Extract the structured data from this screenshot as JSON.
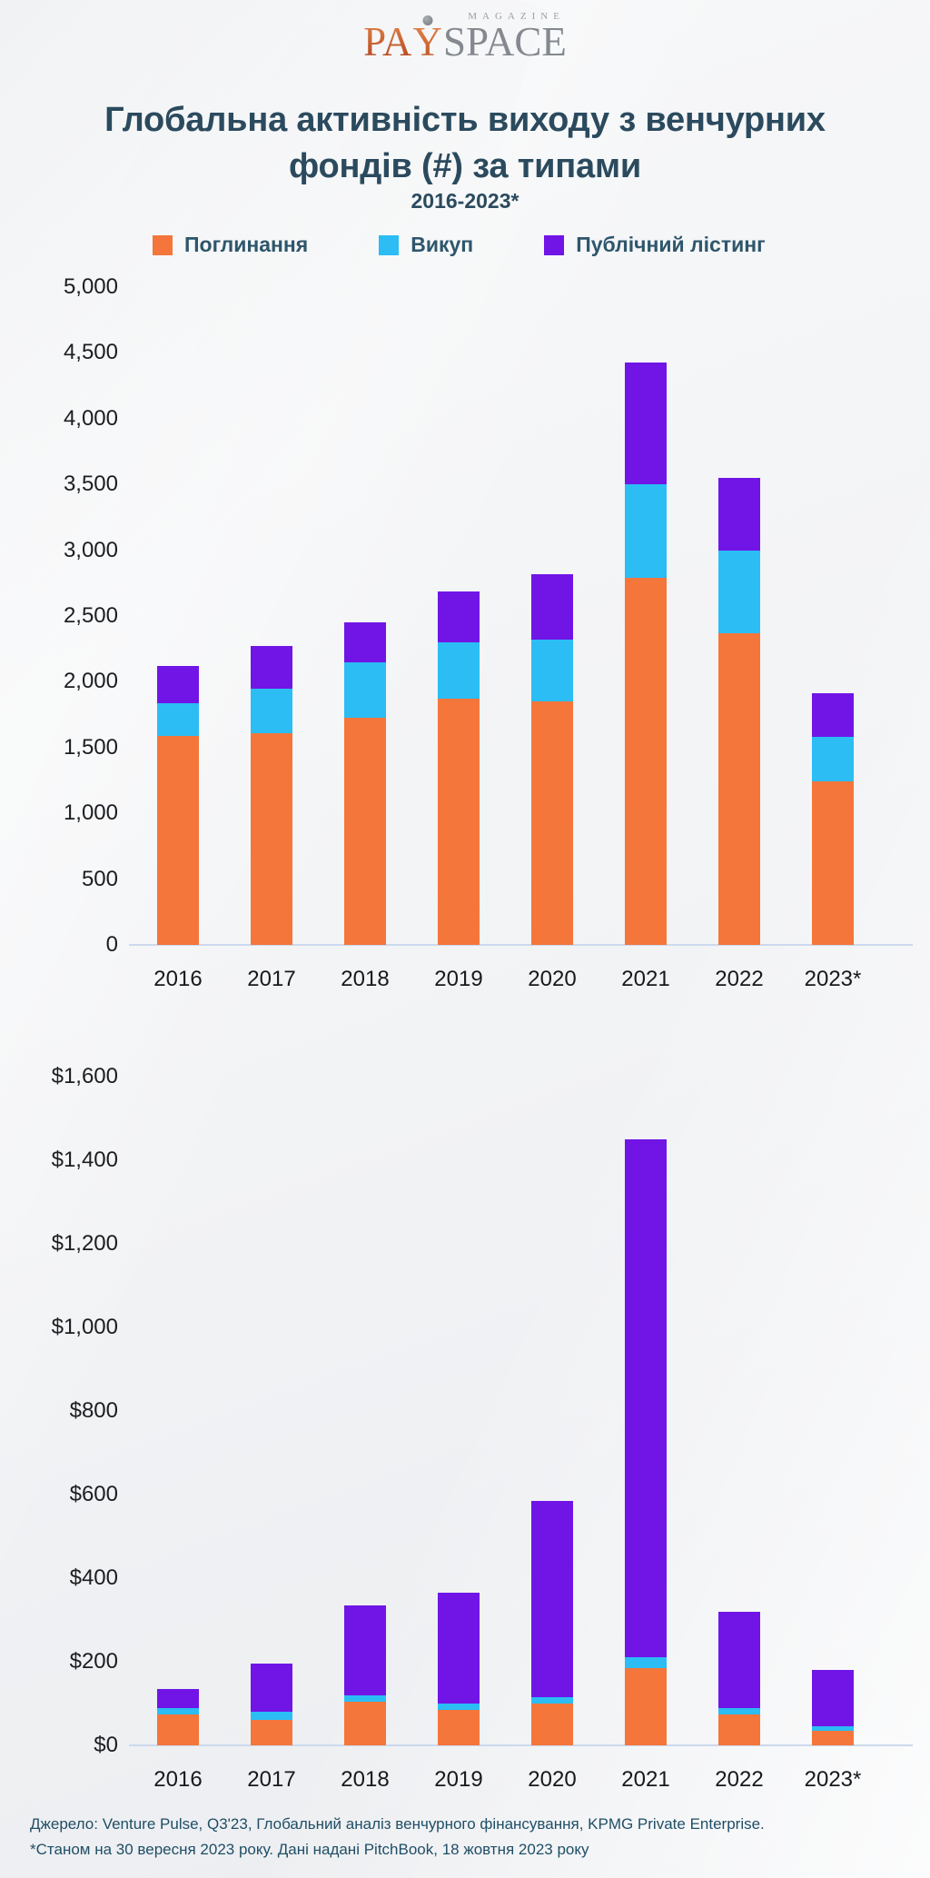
{
  "logo": {
    "magazine": "MAGAZINE",
    "pa": "PA",
    "y": "Y",
    "space": "SPACE"
  },
  "title": "Глобальна активність виходу з венчурних\nфондів (#) за типами",
  "subtitle": "2016-2023*",
  "legend": [
    {
      "label": "Поглинання",
      "color": "#f4763b"
    },
    {
      "label": "Викуп",
      "color": "#2bbdf4"
    },
    {
      "label": "Публічний лістинг",
      "color": "#7015e6"
    }
  ],
  "colors": {
    "acquisition": "#f4763b",
    "buyout": "#2bbdf4",
    "public_listing": "#7015e6",
    "title_text": "#2b4a5e",
    "footer_text": "#1f4e66",
    "axis_line": "#ccd9ee"
  },
  "chart_data": [
    {
      "type": "bar",
      "stacked": true,
      "title": "Глобальна активність виходу з венчурних фондів (#) за типами",
      "subtitle": "2016-2023*",
      "categories": [
        "2016",
        "2017",
        "2018",
        "2019",
        "2020",
        "2021",
        "2022",
        "2023*"
      ],
      "series": [
        {
          "name": "Поглинання",
          "color": "#f4763b",
          "values": [
            1590,
            1610,
            1730,
            1870,
            1850,
            2790,
            2370,
            1240
          ]
        },
        {
          "name": "Викуп",
          "color": "#2bbdf4",
          "values": [
            250,
            340,
            420,
            430,
            470,
            710,
            630,
            340
          ]
        },
        {
          "name": "Публічний лістинг",
          "color": "#7015e6",
          "values": [
            280,
            320,
            300,
            390,
            500,
            930,
            550,
            330
          ]
        }
      ],
      "totals": [
        2120,
        2270,
        2450,
        2690,
        2820,
        4430,
        3550,
        1910
      ],
      "ylim": [
        0,
        5000
      ],
      "ytick_step": 500,
      "yticks": [
        "5,000",
        "4,500",
        "4,000",
        "3,500",
        "3,000",
        "2,500",
        "2,000",
        "1,500",
        "1,000",
        "500",
        "0"
      ],
      "grid": false,
      "legend_position": "top"
    },
    {
      "type": "bar",
      "stacked": true,
      "title": "",
      "categories": [
        "2016",
        "2017",
        "2018",
        "2019",
        "2020",
        "2021",
        "2022",
        "2023*"
      ],
      "series": [
        {
          "name": "Поглинання",
          "color": "#f4763b",
          "values": [
            75,
            60,
            105,
            85,
            100,
            185,
            75,
            35
          ]
        },
        {
          "name": "Викуп",
          "color": "#2bbdf4",
          "values": [
            15,
            20,
            15,
            15,
            15,
            25,
            15,
            10
          ]
        },
        {
          "name": "Публічний лістинг",
          "color": "#7015e6",
          "values": [
            45,
            115,
            215,
            265,
            470,
            1240,
            230,
            135
          ]
        }
      ],
      "totals": [
        135,
        195,
        335,
        365,
        585,
        1450,
        320,
        180
      ],
      "ylim": [
        0,
        1600
      ],
      "ytick_step": 200,
      "yticks": [
        "$1,600",
        "$1,400",
        "$1,200",
        "$1,000",
        "$800",
        "$600",
        "$400",
        "$200",
        "$0"
      ],
      "grid": false,
      "legend_position": "none"
    }
  ],
  "footer": {
    "line1": "Джерело: Venture Pulse, Q3'23, Глобальний аналіз венчурного фінансування, KPMG Private Enterprise.",
    "line2": "*Станом на 30 вересня 2023 року. Дані надані PitchBook, 18 жовтня 2023 року"
  }
}
